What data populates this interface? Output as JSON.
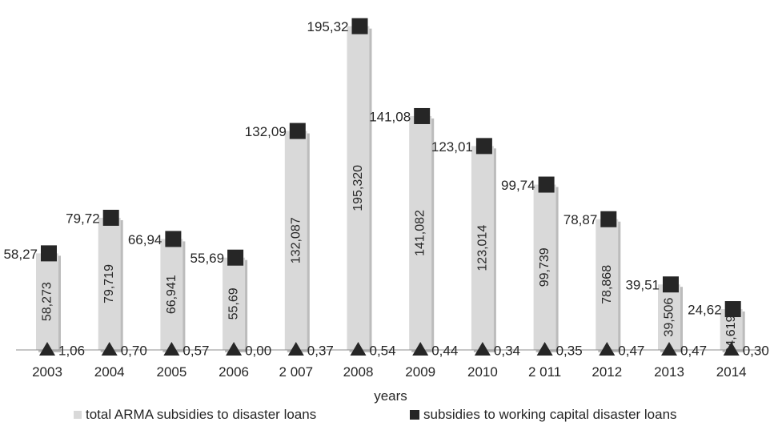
{
  "chart_data": {
    "type": "bar",
    "xlabel": "years",
    "categories": [
      "2003",
      "2004",
      "2005",
      "2006",
      "2 007",
      "2008",
      "2009",
      "2010",
      "2 011",
      "2012",
      "2013",
      "2014"
    ],
    "ylim": [
      0,
      200
    ],
    "grid": false,
    "legend_position": "bottom",
    "series": [
      {
        "name": "total ARMA subsidies to disaster loans",
        "type": "bar",
        "color": "#d9d9d9",
        "values": [
          58.273,
          79.719,
          66.941,
          55.69,
          132.087,
          195.32,
          141.082,
          123.014,
          99.739,
          78.868,
          39.506,
          24.619
        ],
        "labels": [
          "58,273",
          "79,719",
          "66,941",
          "55,69",
          "132,087",
          "195,320",
          "141,082",
          "123,014",
          "99,739",
          "78,868",
          "39,506",
          "24,619"
        ]
      },
      {
        "name": "subsidies to working capital disaster loans",
        "type": "marker-square",
        "color": "#262626",
        "values": [
          58.27,
          79.72,
          66.94,
          55.69,
          132.09,
          195.32,
          141.08,
          123.01,
          99.74,
          78.87,
          39.51,
          24.62
        ],
        "labels": [
          "58,27",
          "79,72",
          "66,94",
          "55,69",
          "132,09",
          "195,32",
          "141,08",
          "123,01",
          "99,74",
          "78,87",
          "39,51",
          "24,62"
        ]
      },
      {
        "type": "marker-triangle",
        "color": "#262626",
        "values": [
          1.06,
          0.7,
          0.57,
          0.0,
          0.37,
          0.54,
          0.44,
          0.34,
          0.35,
          0.47,
          0.47,
          0.3
        ],
        "labels": [
          "1,06",
          "0,70",
          "0,57",
          "0,00",
          "0,37",
          "0,54",
          "0,44",
          "0,34",
          "0,35",
          "0,47",
          "0,47",
          "0,30"
        ]
      }
    ]
  }
}
